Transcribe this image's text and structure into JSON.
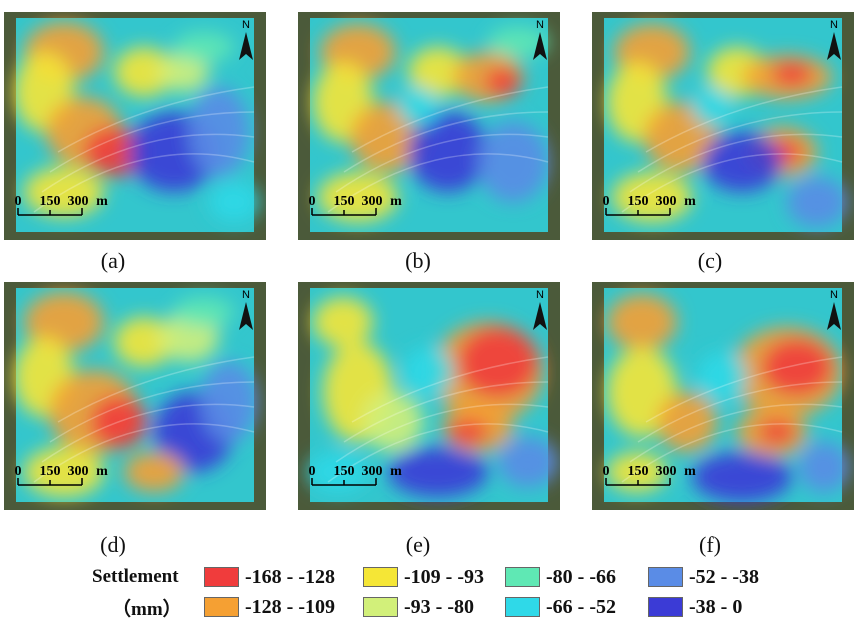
{
  "panels": [
    {
      "id": "a",
      "label": "(a)",
      "scale": {
        "t0": "0",
        "t1": "150",
        "t2": "300",
        "unit": "m"
      },
      "north": "N"
    },
    {
      "id": "b",
      "label": "(b)",
      "scale": {
        "t0": "0",
        "t1": "150",
        "t2": "300",
        "unit": "m"
      },
      "north": "N"
    },
    {
      "id": "c",
      "label": "(c)",
      "scale": {
        "t0": "0",
        "t1": "150",
        "t2": "300",
        "unit": "m"
      },
      "north": "N"
    },
    {
      "id": "d",
      "label": "(d)",
      "scale": {
        "t0": "0",
        "t1": "150",
        "t2": "300",
        "unit": "m"
      },
      "north": "N"
    },
    {
      "id": "e",
      "label": "(e)",
      "scale": {
        "t0": "0",
        "t1": "150",
        "t2": "300",
        "unit": "m"
      },
      "north": "N"
    },
    {
      "id": "f",
      "label": "(f)",
      "scale": {
        "t0": "0",
        "t1": "150",
        "t2": "300",
        "unit": "m"
      },
      "north": "N"
    }
  ],
  "legend": {
    "title": "Settlement",
    "unit": "（mm）",
    "items": [
      {
        "label": "-168 - -128",
        "color": "#f03c3c"
      },
      {
        "label": "-128 - -109",
        "color": "#f5a033"
      },
      {
        "label": "-109 - -93",
        "color": "#f5e636"
      },
      {
        "label": "-93 - -80",
        "color": "#d2f07a"
      },
      {
        "label": "-80 - -66",
        "color": "#5fe8b4"
      },
      {
        "label": "-66 - -52",
        "color": "#2fd9e8"
      },
      {
        "label": "-52 - -38",
        "color": "#5a8ce6"
      },
      {
        "label": "-38 - 0",
        "color": "#3b3bd6"
      }
    ]
  }
}
